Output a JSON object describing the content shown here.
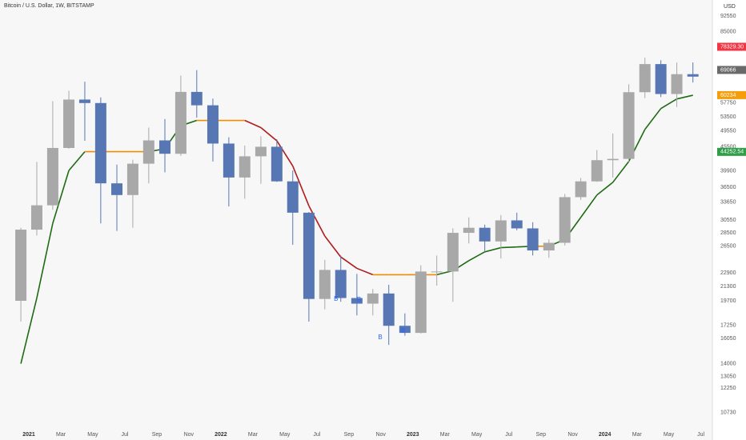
{
  "chart_data": {
    "type": "candlestick",
    "title": "Bitcoin / U.S. Dollar, 1W, BITSTAMP",
    "y_axis_label": "USD",
    "log_scale": true,
    "grid": false,
    "up_color": "#a8a8a8",
    "down_color": "#5677b4",
    "xlim": [
      2020.85,
      2024.56
    ],
    "ylim": [
      10000,
      101000
    ],
    "xticks": [
      {
        "value": 2021,
        "label": "2021"
      },
      {
        "value": 2021.167,
        "label": "Mar"
      },
      {
        "value": 2021.333,
        "label": "May"
      },
      {
        "value": 2021.5,
        "label": "Jul"
      },
      {
        "value": 2021.667,
        "label": "Sep"
      },
      {
        "value": 2021.833,
        "label": "Nov"
      },
      {
        "value": 2022,
        "label": "2022"
      },
      {
        "value": 2022.167,
        "label": "Mar"
      },
      {
        "value": 2022.333,
        "label": "May"
      },
      {
        "value": 2022.5,
        "label": "Jul"
      },
      {
        "value": 2022.667,
        "label": "Sep"
      },
      {
        "value": 2022.833,
        "label": "Nov"
      },
      {
        "value": 2023,
        "label": "2023"
      },
      {
        "value": 2023.167,
        "label": "Mar"
      },
      {
        "value": 2023.333,
        "label": "May"
      },
      {
        "value": 2023.5,
        "label": "Jul"
      },
      {
        "value": 2023.667,
        "label": "Sep"
      },
      {
        "value": 2023.833,
        "label": "Nov"
      },
      {
        "value": 2024,
        "label": "2024"
      },
      {
        "value": 2024.167,
        "label": "Mar"
      },
      {
        "value": 2024.333,
        "label": "May"
      },
      {
        "value": 2024.5,
        "label": "Jul"
      }
    ],
    "yticks": [
      92550,
      85000,
      57750,
      53500,
      49550,
      45500,
      39900,
      36500,
      33650,
      30550,
      28500,
      26500,
      22900,
      21300,
      19700,
      17250,
      16050,
      14000,
      13050,
      12250,
      10730
    ],
    "x": [
      2020.917,
      2021.0,
      2021.083,
      2021.167,
      2021.25,
      2021.333,
      2021.417,
      2021.5,
      2021.583,
      2021.667,
      2021.75,
      2021.833,
      2021.917,
      2022.0,
      2022.083,
      2022.167,
      2022.25,
      2022.333,
      2022.417,
      2022.5,
      2022.583,
      2022.667,
      2022.75,
      2022.833,
      2022.917,
      2023.0,
      2023.083,
      2023.167,
      2023.25,
      2023.333,
      2023.417,
      2023.5,
      2023.583,
      2023.667,
      2023.75,
      2023.833,
      2023.917,
      2024.0,
      2024.083,
      2024.167,
      2024.25,
      2024.333,
      2024.417
    ],
    "open": [
      19700,
      29000,
      33100,
      45200,
      58800,
      57700,
      37300,
      35000,
      41500,
      47100,
      43800,
      61300,
      57000,
      46300,
      38500,
      43200,
      45500,
      37700,
      31800,
      19900,
      23300,
      20000,
      19400,
      20500,
      17200,
      16550,
      23100,
      23100,
      28500,
      29300,
      27200,
      30500,
      29200,
      25900,
      27000,
      34600,
      37700,
      42300,
      42600,
      61200,
      71300,
      60600,
      67500
    ],
    "high": [
      29300,
      41900,
      58300,
      61700,
      64800,
      59500,
      41300,
      42400,
      50500,
      52900,
      67000,
      69000,
      59100,
      47900,
      45800,
      48200,
      47400,
      40000,
      31900,
      24600,
      25200,
      22800,
      21000,
      21500,
      18400,
      23900,
      25200,
      29200,
      31000,
      29800,
      31400,
      31800,
      30200,
      27500,
      35200,
      38400,
      44700,
      48900,
      63900,
      73800,
      72800,
      71900,
      71950
    ],
    "low": [
      17600,
      28100,
      32300,
      45000,
      47000,
      30000,
      28800,
      29300,
      37300,
      39600,
      43300,
      53300,
      42000,
      32900,
      34300,
      37200,
      37600,
      26700,
      17600,
      18800,
      19600,
      18200,
      18200,
      15500,
      16300,
      16500,
      21400,
      19600,
      26900,
      25800,
      24800,
      28900,
      25200,
      24900,
      26600,
      34100,
      37600,
      38500,
      41900,
      59300,
      59600,
      56500,
      64500
    ],
    "close": [
      29000,
      33100,
      45200,
      58800,
      57700,
      37300,
      35000,
      41500,
      47100,
      43800,
      61300,
      57000,
      46300,
      38500,
      43200,
      45500,
      37700,
      31800,
      19900,
      23300,
      20000,
      19400,
      20500,
      17200,
      16550,
      23100,
      23100,
      28500,
      29300,
      27200,
      30500,
      29200,
      25900,
      27000,
      34600,
      37700,
      42300,
      42600,
      61200,
      71300,
      60600,
      67500,
      66600
    ],
    "trail": [
      14000,
      20000,
      30000,
      40000,
      44300,
      44300,
      44300,
      44300,
      44300,
      45000,
      51000,
      52500,
      52500,
      52500,
      52500,
      50500,
      47000,
      41000,
      33000,
      28000,
      25000,
      23500,
      22700,
      22700,
      22700,
      22700,
      22700,
      23200,
      24500,
      25700,
      26300,
      26400,
      26500,
      26500,
      27500,
      31000,
      35000,
      37500,
      42000,
      50000,
      56000,
      59000,
      60200
    ],
    "trail_colors": {
      "up": "#1e6b12",
      "down": "#b01c1c",
      "flat": "#f08c00"
    },
    "annotations": [
      {
        "text": "B",
        "x": 2022.6,
        "y": 19900
      },
      {
        "text": "B",
        "x": 2022.72,
        "y": 19800
      },
      {
        "text": "B",
        "x": 2022.83,
        "y": 16150
      },
      {
        "text": "B",
        "x": 2022.95,
        "y": 16700
      }
    ],
    "price_badges": [
      {
        "value": 78329.3,
        "label": "78329.30",
        "color": "#f23645"
      },
      {
        "value": 69066,
        "label": "69066",
        "color": "#6a6a6a"
      },
      {
        "value": 60234,
        "label": "60234",
        "color": "#f59d0a"
      },
      {
        "value": 44252.54,
        "label": "44252.54",
        "color": "#2e9e48"
      }
    ]
  }
}
